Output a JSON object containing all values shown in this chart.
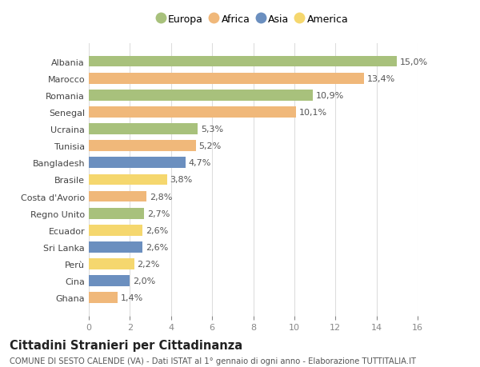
{
  "categories": [
    "Albania",
    "Marocco",
    "Romania",
    "Senegal",
    "Ucraina",
    "Tunisia",
    "Bangladesh",
    "Brasile",
    "Costa d'Avorio",
    "Regno Unito",
    "Ecuador",
    "Sri Lanka",
    "Perù",
    "Cina",
    "Ghana"
  ],
  "values": [
    15.0,
    13.4,
    10.9,
    10.1,
    5.3,
    5.2,
    4.7,
    3.8,
    2.8,
    2.7,
    2.6,
    2.6,
    2.2,
    2.0,
    1.4
  ],
  "labels": [
    "15,0%",
    "13,4%",
    "10,9%",
    "10,1%",
    "5,3%",
    "5,2%",
    "4,7%",
    "3,8%",
    "2,8%",
    "2,7%",
    "2,6%",
    "2,6%",
    "2,2%",
    "2,0%",
    "1,4%"
  ],
  "continents": [
    "Europa",
    "Africa",
    "Europa",
    "Africa",
    "Europa",
    "Africa",
    "Asia",
    "America",
    "Africa",
    "Europa",
    "America",
    "Asia",
    "America",
    "Asia",
    "Africa"
  ],
  "colors": {
    "Europa": "#a8c17c",
    "Africa": "#f0b87a",
    "Asia": "#6b8fbf",
    "America": "#f5d76e"
  },
  "legend_order": [
    "Europa",
    "Africa",
    "Asia",
    "America"
  ],
  "xlim": [
    0,
    16
  ],
  "xticks": [
    0,
    2,
    4,
    6,
    8,
    10,
    12,
    14,
    16
  ],
  "title": "Cittadini Stranieri per Cittadinanza",
  "subtitle": "COMUNE DI SESTO CALENDE (VA) - Dati ISTAT al 1° gennaio di ogni anno - Elaborazione TUTTITALIA.IT",
  "background_color": "#ffffff",
  "grid_color": "#dddddd",
  "bar_height": 0.65,
  "label_fontsize": 8.0,
  "tick_fontsize": 8.0,
  "title_fontsize": 10.5,
  "subtitle_fontsize": 7.2
}
